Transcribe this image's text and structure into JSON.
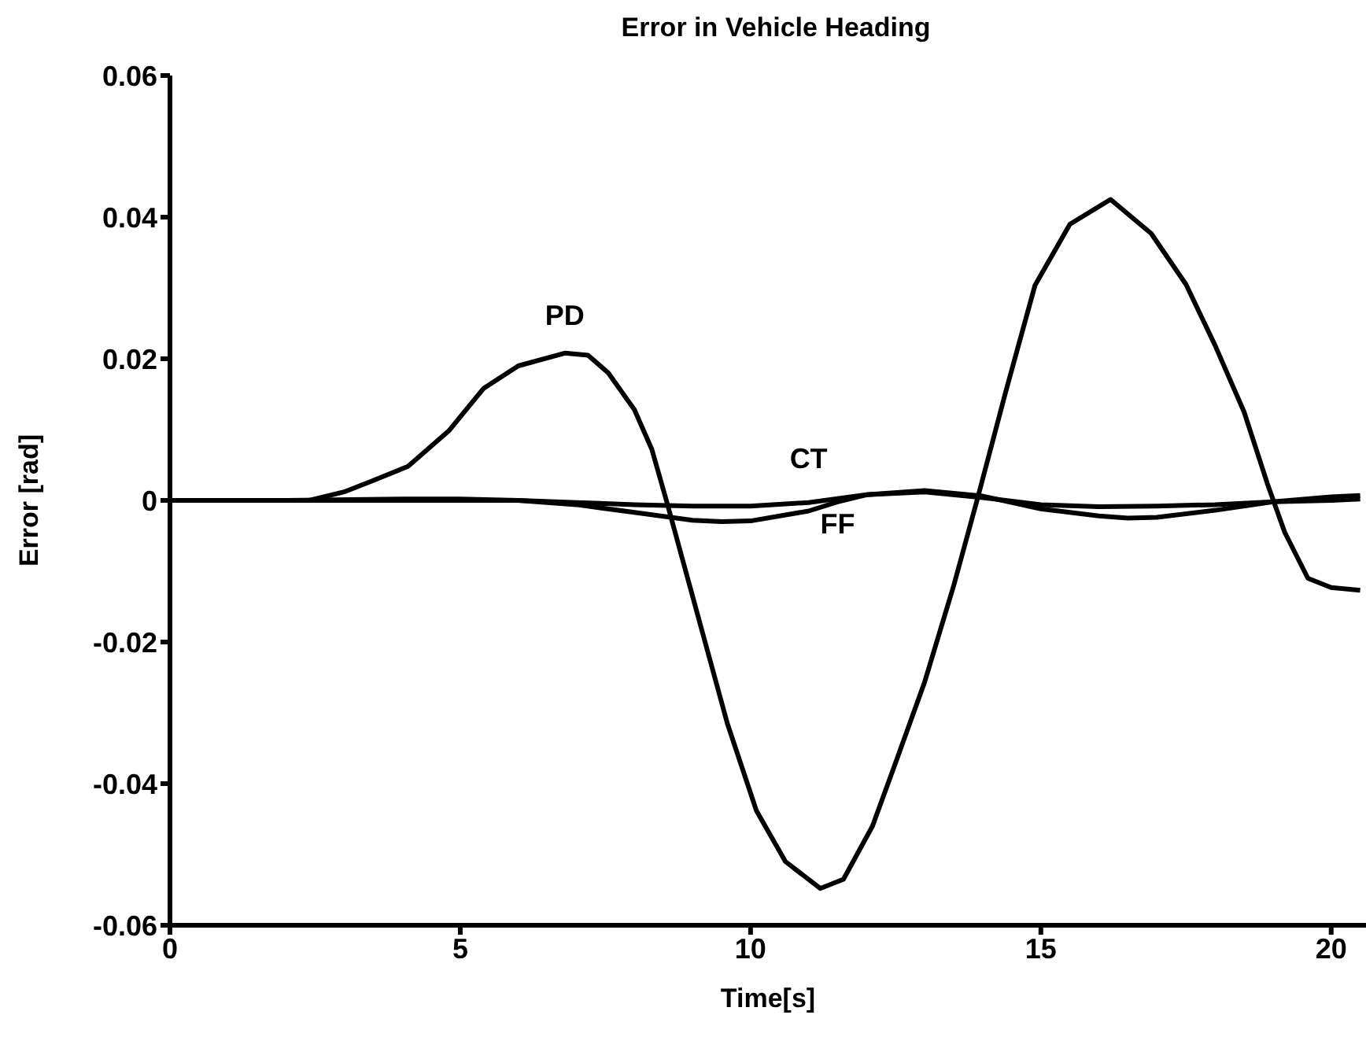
{
  "chart_data": {
    "type": "line",
    "title": "Error in Vehicle Heading",
    "xlabel": "Time[s]",
    "ylabel": "Error [rad]",
    "xlim": [
      0,
      20.6
    ],
    "xticks": [
      0,
      5,
      10,
      15,
      20
    ],
    "ylim": [
      -0.06,
      0.06
    ],
    "yticks": [
      -0.06,
      -0.04,
      -0.02,
      0,
      0.02,
      0.04,
      0.06
    ],
    "grid": false,
    "legend": false,
    "marker": "none",
    "line_style": "solid",
    "series": [
      {
        "name": "PD",
        "color": "#000000",
        "x": [
          0,
          1,
          2,
          2.4,
          3,
          3.5,
          4.1,
          4.8,
          5.4,
          6,
          6.8,
          7.2,
          7.55,
          8,
          8.3,
          8.55,
          9.2,
          9.6,
          10.1,
          10.6,
          11.2,
          11.6,
          12.1,
          12.5,
          13,
          13.5,
          13.9,
          14.4,
          14.9,
          15.5,
          16.2,
          16.9,
          17.5,
          18,
          18.5,
          18.9,
          19.2,
          19.6,
          20,
          20.5
        ],
        "values": [
          0,
          0,
          0,
          0,
          0.0012,
          0.0028,
          0.0048,
          0.0098,
          0.0158,
          0.019,
          0.0208,
          0.0205,
          0.018,
          0.0128,
          0.0072,
          0,
          -0.0195,
          -0.0315,
          -0.0438,
          -0.051,
          -0.0548,
          -0.0535,
          -0.046,
          -0.037,
          -0.0256,
          -0.012,
          0,
          0.0155,
          0.0304,
          0.039,
          0.0425,
          0.0377,
          0.0305,
          0.0219,
          0.0125,
          0.0024,
          -0.0045,
          -0.011,
          -0.0123,
          -0.0127
        ]
      },
      {
        "name": "CT",
        "color": "#000000",
        "x": [
          0,
          2,
          4,
          6,
          7,
          8,
          9,
          10,
          11,
          12,
          13,
          14,
          15,
          16,
          17,
          18,
          19,
          20,
          20.5
        ],
        "values": [
          0,
          0,
          0,
          0,
          -0.0003,
          -0.0006,
          -0.0008,
          -0.0008,
          -0.0003,
          0.0008,
          0.0012,
          0.0004,
          -0.0006,
          -0.0009,
          -0.0008,
          -0.0006,
          -0.0002,
          0,
          0.0002
        ]
      },
      {
        "name": "FF",
        "color": "#000000",
        "x": [
          0,
          2,
          4,
          5,
          6,
          7,
          8,
          9,
          9.5,
          10,
          11,
          11.5,
          12,
          13,
          14,
          15,
          16,
          16.5,
          17,
          18,
          19,
          20,
          20.5
        ],
        "values": [
          0,
          0,
          0.0002,
          0.0002,
          0,
          -0.0006,
          -0.0017,
          -0.0028,
          -0.003,
          -0.0029,
          -0.0015,
          -0.0002,
          0.0008,
          0.0014,
          0.0006,
          -0.0012,
          -0.0022,
          -0.0025,
          -0.0024,
          -0.0014,
          -0.0002,
          0.0005,
          0.0007
        ]
      }
    ]
  }
}
